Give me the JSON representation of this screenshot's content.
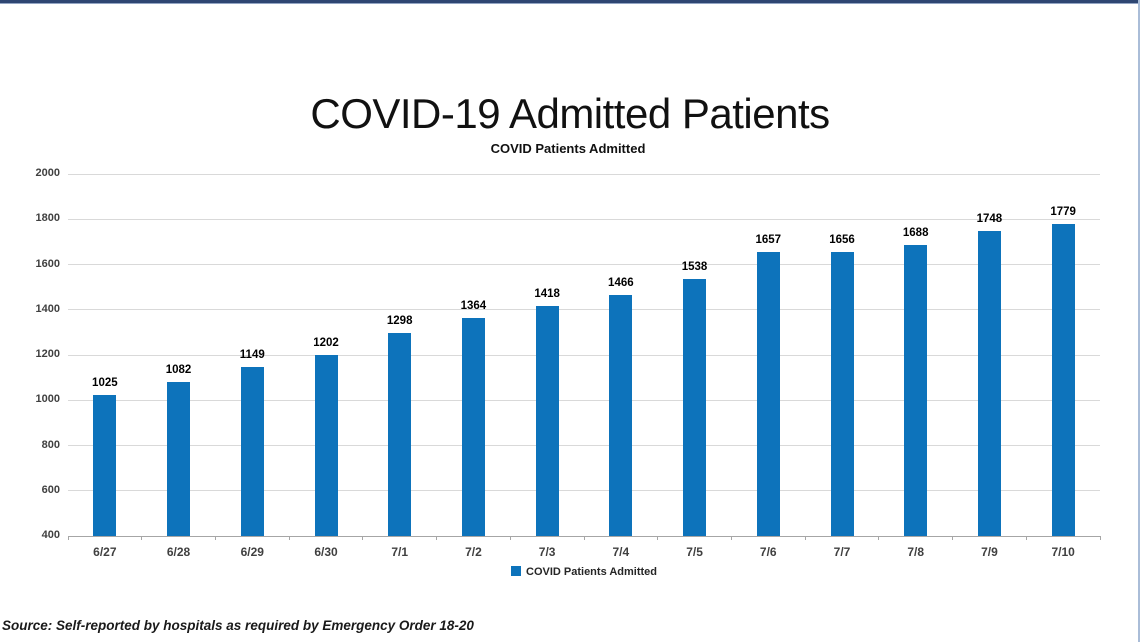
{
  "page": {
    "main_title": "COVID-19 Admitted Patients",
    "source_note": "Source: Self-reported by hospitals as required by Emergency Order 18-20"
  },
  "colors": {
    "bar": "#0d73bb",
    "top_border": "#2e4672",
    "right_border": "#aabdd8",
    "gridline": "#d9d9d9",
    "axis_label": "#404040",
    "data_label": "#000000"
  },
  "chart_data": {
    "type": "bar",
    "title": "COVID Patients Admitted",
    "categories": [
      "6/27",
      "6/28",
      "6/29",
      "6/30",
      "7/1",
      "7/2",
      "7/3",
      "7/4",
      "7/5",
      "7/6",
      "7/7",
      "7/8",
      "7/9",
      "7/10"
    ],
    "values": [
      1025,
      1082,
      1149,
      1202,
      1298,
      1364,
      1418,
      1466,
      1538,
      1657,
      1656,
      1688,
      1748,
      1779
    ],
    "xlabel": "",
    "ylabel": "",
    "ylim": [
      400,
      2000
    ],
    "yticks": [
      400,
      600,
      800,
      1000,
      1200,
      1400,
      1600,
      1800,
      2000
    ],
    "grid": true,
    "data_labels": true,
    "legend": [
      "COVID Patients Admitted"
    ],
    "legend_position": "bottom"
  }
}
